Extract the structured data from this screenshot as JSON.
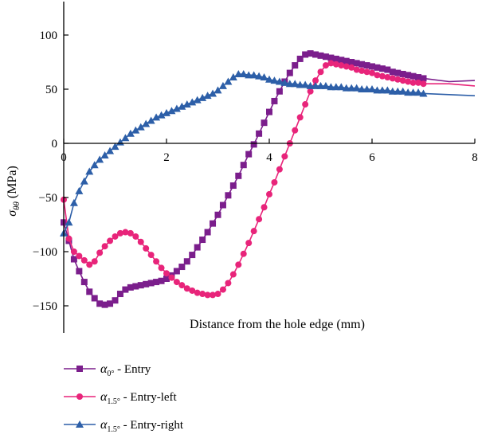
{
  "chart_data": {
    "type": "line",
    "title": "",
    "xlabel": "Distance from the hole edge (mm)",
    "ylabel": {
      "symbol": "σ",
      "subscript": "θθ",
      "unit": " (MPa)"
    },
    "xlim": [
      0,
      8
    ],
    "ylim": [
      -175,
      125
    ],
    "x_ticks": [
      0,
      2,
      4,
      6,
      8
    ],
    "y_ticks": [
      100,
      50,
      0,
      -50,
      -100,
      -150
    ],
    "grid": false,
    "legend_position": "bottom-left",
    "series": [
      {
        "name": {
          "symbol": "α",
          "subscript": "0°",
          "suffix": " - Entry"
        },
        "color": "#7b1e8c",
        "marker": "square",
        "x": [
          0.0,
          0.1,
          0.2,
          0.3,
          0.4,
          0.5,
          0.6,
          0.7,
          0.8,
          0.9,
          1.0,
          1.1,
          1.2,
          1.3,
          1.4,
          1.5,
          1.6,
          1.7,
          1.8,
          1.9,
          2.0,
          2.1,
          2.2,
          2.3,
          2.4,
          2.5,
          2.6,
          2.7,
          2.8,
          2.9,
          3.0,
          3.1,
          3.2,
          3.3,
          3.4,
          3.5,
          3.6,
          3.7,
          3.8,
          3.9,
          4.0,
          4.1,
          4.2,
          4.3,
          4.4,
          4.5,
          4.6,
          4.7,
          4.8,
          4.9,
          5.0,
          5.1,
          5.2,
          5.3,
          5.4,
          5.5,
          5.6,
          5.7,
          5.8,
          5.9,
          6.0,
          6.1,
          6.2,
          6.3,
          6.4,
          6.5,
          6.6,
          6.7,
          6.8,
          6.9,
          7.0,
          7.5,
          8.0
        ],
        "y": [
          -73,
          -90,
          -107,
          -118,
          -128,
          -137,
          -143,
          -148,
          -149,
          -148,
          -145,
          -139,
          -135,
          -133,
          -132,
          -131,
          -130,
          -129,
          -128,
          -127,
          -125,
          -122,
          -118,
          -114,
          -109,
          -103,
          -96,
          -89,
          -82,
          -74,
          -66,
          -57,
          -48,
          -39,
          -30,
          -20,
          -10,
          -1,
          9,
          19,
          29,
          39,
          48,
          57,
          65,
          72,
          78,
          82,
          83,
          82,
          81,
          80,
          79,
          78,
          77,
          76,
          75,
          74,
          73,
          72,
          71,
          70,
          69,
          68,
          66,
          65,
          64,
          63,
          62,
          61,
          60,
          57,
          58
        ]
      },
      {
        "name": {
          "symbol": "α",
          "subscript": "1.5°",
          "suffix": " - Entry-left"
        },
        "color": "#e8247a",
        "marker": "circle",
        "x": [
          0.0,
          0.1,
          0.2,
          0.3,
          0.4,
          0.5,
          0.6,
          0.7,
          0.8,
          0.9,
          1.0,
          1.1,
          1.2,
          1.3,
          1.4,
          1.5,
          1.6,
          1.7,
          1.8,
          1.9,
          2.0,
          2.1,
          2.2,
          2.3,
          2.4,
          2.5,
          2.6,
          2.7,
          2.8,
          2.9,
          3.0,
          3.1,
          3.2,
          3.3,
          3.4,
          3.5,
          3.6,
          3.7,
          3.8,
          3.9,
          4.0,
          4.1,
          4.2,
          4.3,
          4.4,
          4.5,
          4.6,
          4.7,
          4.8,
          4.9,
          5.0,
          5.1,
          5.2,
          5.3,
          5.4,
          5.5,
          5.6,
          5.7,
          5.8,
          5.9,
          6.0,
          6.1,
          6.2,
          6.3,
          6.4,
          6.5,
          6.6,
          6.7,
          6.8,
          6.9,
          7.0,
          7.5,
          8.0
        ],
        "y": [
          -52,
          -88,
          -100,
          -104,
          -108,
          -112,
          -109,
          -101,
          -95,
          -90,
          -86,
          -83,
          -82,
          -83,
          -86,
          -91,
          -97,
          -103,
          -109,
          -115,
          -120,
          -124,
          -128,
          -131,
          -134,
          -136,
          -138,
          -139,
          -140,
          -140,
          -139,
          -135,
          -129,
          -121,
          -112,
          -102,
          -92,
          -81,
          -70,
          -59,
          -47,
          -36,
          -24,
          -12,
          0,
          12,
          24,
          36,
          48,
          58,
          66,
          72,
          74,
          73,
          72,
          71,
          70,
          68,
          67,
          66,
          65,
          63,
          62,
          61,
          60,
          59,
          58,
          57,
          56,
          56,
          55,
          55,
          53
        ]
      },
      {
        "name": {
          "symbol": "α",
          "subscript": "1.5°",
          "suffix": " - Entry-right"
        },
        "color": "#2d5fa8",
        "marker": "triangle",
        "x": [
          0.0,
          0.1,
          0.2,
          0.3,
          0.4,
          0.5,
          0.6,
          0.7,
          0.8,
          0.9,
          1.0,
          1.1,
          1.2,
          1.3,
          1.4,
          1.5,
          1.6,
          1.7,
          1.8,
          1.9,
          2.0,
          2.1,
          2.2,
          2.3,
          2.4,
          2.5,
          2.6,
          2.7,
          2.8,
          2.9,
          3.0,
          3.1,
          3.2,
          3.3,
          3.4,
          3.5,
          3.6,
          3.7,
          3.8,
          3.9,
          4.0,
          4.1,
          4.2,
          4.3,
          4.4,
          4.5,
          4.6,
          4.7,
          4.8,
          4.9,
          5.0,
          5.1,
          5.2,
          5.3,
          5.4,
          5.5,
          5.6,
          5.7,
          5.8,
          5.9,
          6.0,
          6.1,
          6.2,
          6.3,
          6.4,
          6.5,
          6.6,
          6.7,
          6.8,
          6.9,
          7.0,
          7.5,
          8.0
        ],
        "y": [
          -83,
          -73,
          -55,
          -44,
          -35,
          -26,
          -20,
          -15,
          -11,
          -7,
          -3,
          1,
          5,
          9,
          12,
          15,
          18,
          21,
          24,
          26,
          28,
          30,
          32,
          34,
          36,
          38,
          40,
          42,
          44,
          46,
          49,
          53,
          57,
          61,
          64,
          64,
          63,
          63,
          62,
          61,
          59,
          58,
          57,
          56,
          55,
          55,
          54,
          54,
          53,
          53,
          53,
          53,
          52,
          52,
          52,
          51,
          51,
          51,
          50,
          50,
          50,
          49,
          49,
          49,
          48,
          48,
          48,
          47,
          47,
          47,
          46,
          45,
          44
        ]
      }
    ]
  }
}
